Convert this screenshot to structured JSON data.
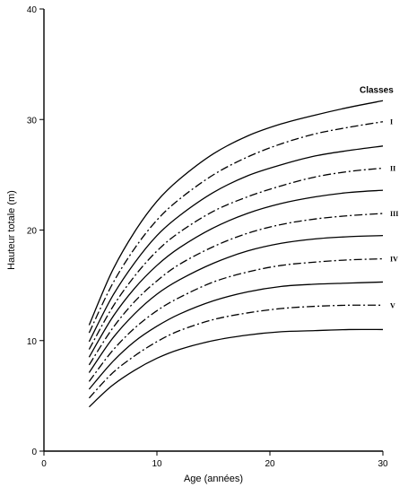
{
  "chart_data": {
    "type": "line",
    "title": "",
    "xlabel": "Age (années)",
    "ylabel": "Hauteur totale (m)",
    "xlim": [
      0,
      30
    ],
    "ylim": [
      0,
      40
    ],
    "xticks": [
      0,
      10,
      20,
      30
    ],
    "yticks": [
      0,
      10,
      20,
      30,
      40
    ],
    "grid": false,
    "legend_title": "Classes",
    "x": [
      4,
      6,
      8,
      10,
      12,
      15,
      18,
      21,
      24,
      27,
      30
    ],
    "series": [
      {
        "style": "solid",
        "values": [
          11.4,
          16.2,
          19.8,
          22.6,
          24.6,
          26.9,
          28.5,
          29.6,
          30.4,
          31.1,
          31.7
        ]
      },
      {
        "style": "dashdot",
        "label": "I",
        "values": [
          10.7,
          15.0,
          18.3,
          20.9,
          22.8,
          25.0,
          26.6,
          27.8,
          28.7,
          29.3,
          29.8
        ]
      },
      {
        "style": "solid",
        "values": [
          9.9,
          13.9,
          17.0,
          19.5,
          21.3,
          23.4,
          24.9,
          25.9,
          26.7,
          27.2,
          27.6
        ]
      },
      {
        "style": "dashdot",
        "label": "II",
        "values": [
          9.2,
          12.9,
          15.8,
          18.1,
          19.8,
          21.7,
          23.0,
          24.0,
          24.8,
          25.3,
          25.6
        ]
      },
      {
        "style": "solid",
        "values": [
          8.5,
          12.0,
          14.7,
          16.8,
          18.4,
          20.2,
          21.5,
          22.4,
          23.0,
          23.4,
          23.6
        ]
      },
      {
        "style": "dashdot",
        "label": "III",
        "values": [
          7.8,
          11.0,
          13.5,
          15.4,
          16.9,
          18.5,
          19.7,
          20.5,
          21.0,
          21.3,
          21.5
        ]
      },
      {
        "style": "solid",
        "values": [
          7.1,
          10.1,
          12.4,
          14.2,
          15.5,
          17.0,
          18.1,
          18.8,
          19.2,
          19.4,
          19.5
        ]
      },
      {
        "style": "dashdot",
        "label": "IV",
        "values": [
          6.3,
          9.0,
          11.1,
          12.7,
          13.9,
          15.3,
          16.2,
          16.8,
          17.1,
          17.3,
          17.4
        ]
      },
      {
        "style": "solid",
        "values": [
          5.6,
          8.0,
          9.9,
          11.3,
          12.4,
          13.6,
          14.4,
          14.9,
          15.1,
          15.2,
          15.3
        ]
      },
      {
        "style": "dashdot",
        "label": "V",
        "values": [
          4.8,
          7.0,
          8.6,
          9.9,
          10.9,
          11.9,
          12.5,
          12.9,
          13.1,
          13.2,
          13.2
        ]
      },
      {
        "style": "solid",
        "values": [
          4.0,
          5.9,
          7.3,
          8.4,
          9.2,
          10.0,
          10.5,
          10.8,
          10.9,
          11.0,
          11.0
        ]
      }
    ]
  }
}
